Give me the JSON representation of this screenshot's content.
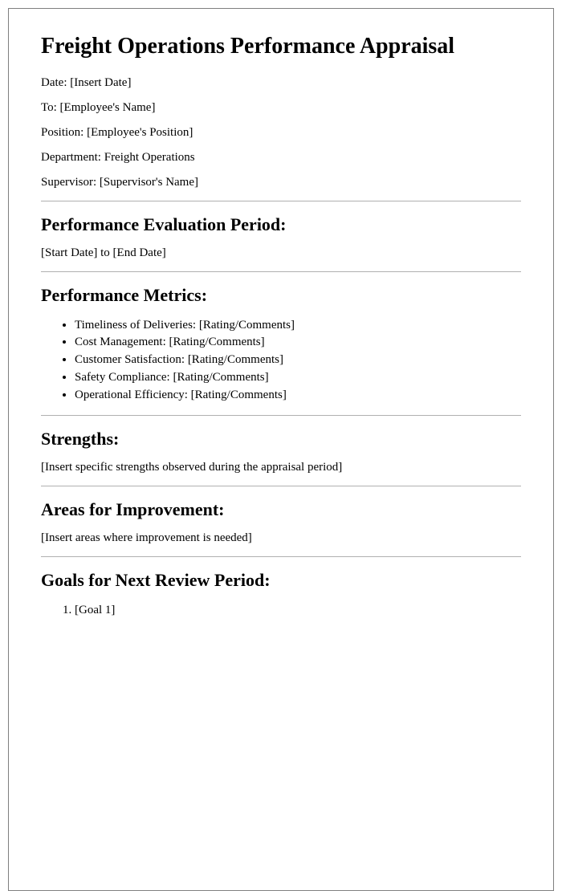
{
  "title": "Freight Operations Performance Appraisal",
  "header_fields": {
    "date_label": "Date: [Insert Date]",
    "to_label": "To: [Employee's Name]",
    "position_label": "Position: [Employee's Position]",
    "department_label": "Department: Freight Operations",
    "supervisor_label": "Supervisor: [Supervisor's Name]"
  },
  "sections": {
    "period": {
      "heading": "Performance Evaluation Period:",
      "content": "[Start Date] to [End Date]"
    },
    "metrics": {
      "heading": "Performance Metrics:",
      "items": [
        "Timeliness of Deliveries: [Rating/Comments]",
        "Cost Management: [Rating/Comments]",
        "Customer Satisfaction: [Rating/Comments]",
        "Safety Compliance: [Rating/Comments]",
        "Operational Efficiency: [Rating/Comments]"
      ]
    },
    "strengths": {
      "heading": "Strengths:",
      "content": "[Insert specific strengths observed during the appraisal period]"
    },
    "improvement": {
      "heading": "Areas for Improvement:",
      "content": "[Insert areas where improvement is needed]"
    },
    "goals": {
      "heading": "Goals for Next Review Period:",
      "items": [
        "[Goal 1]"
      ]
    }
  },
  "style": {
    "page_border_color": "#808080",
    "hr_color": "#b0b0b0",
    "text_color": "#000000",
    "background_color": "#ffffff",
    "h1_fontsize": 28,
    "h2_fontsize": 22,
    "body_fontsize": 15
  }
}
